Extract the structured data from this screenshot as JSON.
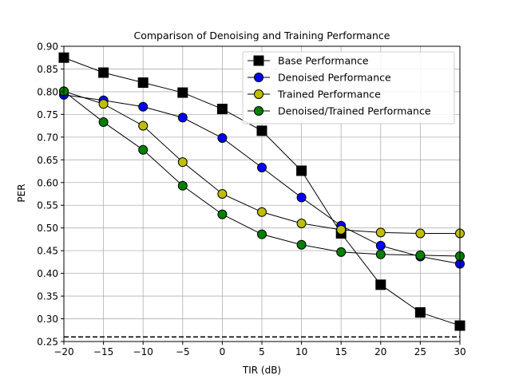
{
  "chart_data": {
    "type": "line",
    "title": "Comparison of Denoising and Training Performance",
    "xlabel": "TIR (dB)",
    "ylabel": "PER",
    "xlim": [
      -20,
      30
    ],
    "ylim": [
      0.25,
      0.9
    ],
    "x_ticks": [
      -20,
      -15,
      -10,
      -5,
      0,
      5,
      10,
      15,
      20,
      25,
      30
    ],
    "x_tick_labels": [
      "−20",
      "−15",
      "−10",
      "−5",
      "0",
      "5",
      "10",
      "15",
      "20",
      "25",
      "30"
    ],
    "y_ticks": [
      0.25,
      0.3,
      0.35,
      0.4,
      0.45,
      0.5,
      0.55,
      0.6,
      0.65,
      0.7,
      0.75,
      0.8,
      0.85,
      0.9
    ],
    "y_tick_labels": [
      "0.25",
      "0.30",
      "0.35",
      "0.40",
      "0.45",
      "0.50",
      "0.55",
      "0.60",
      "0.65",
      "0.70",
      "0.75",
      "0.80",
      "0.85",
      "0.90"
    ],
    "grid": true,
    "legend_position": "top-right",
    "x": [
      -20,
      -15,
      -10,
      -5,
      0,
      5,
      10,
      15,
      20,
      25,
      30
    ],
    "series": [
      {
        "name": "Base Performance",
        "marker": "square",
        "color": "#000000",
        "values": [
          0.875,
          0.842,
          0.82,
          0.798,
          0.762,
          0.714,
          0.626,
          0.488,
          0.375,
          0.314,
          0.285
        ]
      },
      {
        "name": "Denoised Performance",
        "marker": "circle",
        "color": "#0000ff",
        "values": [
          0.793,
          0.781,
          0.767,
          0.743,
          0.698,
          0.633,
          0.567,
          0.505,
          0.461,
          0.437,
          0.421
        ]
      },
      {
        "name": "Trained Performance",
        "marker": "circle",
        "color": "#bfbf00",
        "values": [
          0.801,
          0.773,
          0.725,
          0.645,
          0.575,
          0.535,
          0.51,
          0.496,
          0.49,
          0.488,
          0.488
        ]
      },
      {
        "name": "Denoised/Trained Performance",
        "marker": "circle",
        "color": "#008000",
        "values": [
          0.801,
          0.733,
          0.672,
          0.593,
          0.53,
          0.486,
          0.463,
          0.447,
          0.442,
          0.44,
          0.438
        ]
      }
    ],
    "reference_line": {
      "y": 0.26,
      "style": "dashed",
      "color": "#000000"
    }
  }
}
